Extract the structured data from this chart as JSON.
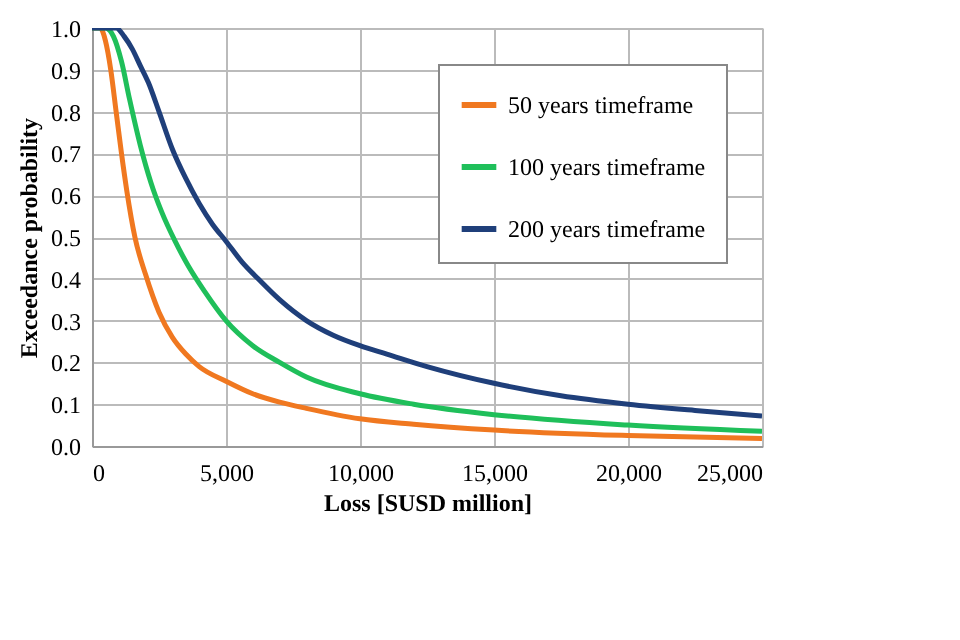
{
  "chart_data": {
    "type": "line",
    "xlabel": "Loss [SUSD million]",
    "ylabel": "Exceedance probability",
    "xlim": [
      0,
      25000
    ],
    "xticks": [
      {
        "value": 0,
        "label": "0"
      },
      {
        "value": 5000,
        "label": "5,000"
      },
      {
        "value": 10000,
        "label": "10,000"
      },
      {
        "value": 15000,
        "label": "15,000"
      },
      {
        "value": 20000,
        "label": "20,000"
      },
      {
        "value": 25000,
        "label": "25,000"
      }
    ],
    "ylim": [
      0,
      1
    ],
    "yticks": [
      {
        "value": 0,
        "label": "0.0"
      },
      {
        "value": 0.1,
        "label": "0.1"
      },
      {
        "value": 0.2,
        "label": "0.2"
      },
      {
        "value": 0.3,
        "label": "0.3"
      },
      {
        "value": 0.4,
        "label": "0.4"
      },
      {
        "value": 0.5,
        "label": "0.5"
      },
      {
        "value": 0.6,
        "label": "0.6"
      },
      {
        "value": 0.7,
        "label": "0.7"
      },
      {
        "value": 0.8,
        "label": "0.8"
      },
      {
        "value": 0.9,
        "label": "0.9"
      },
      {
        "value": 1,
        "label": "1.0"
      }
    ],
    "grid": true,
    "legend": "top right",
    "marker": "none",
    "line_style": "solid",
    "series": [
      {
        "name": "50 years timeframe",
        "color": "#f07820",
        "x": [
          0,
          300,
          500,
          700,
          900,
          1100,
          1300,
          1600,
          2000,
          2500,
          3000,
          3500,
          4000,
          5000,
          6000,
          7000,
          8000,
          10000,
          12000,
          15000,
          20000,
          25000
        ],
        "values": [
          1,
          1,
          0.97,
          0.9,
          0.8,
          0.7,
          0.61,
          0.5,
          0.41,
          0.32,
          0.26,
          0.22,
          0.19,
          0.155,
          0.125,
          0.105,
          0.09,
          0.065,
          0.052,
          0.038,
          0.025,
          0.018
        ]
      },
      {
        "name": "100 years timeframe",
        "color": "#1fbf5a",
        "x": [
          0,
          500,
          800,
          1100,
          1400,
          1800,
          2200,
          2600,
          3100,
          3600,
          4200,
          5000,
          6000,
          7000,
          8000,
          10000,
          12000,
          15000,
          20000,
          25000
        ],
        "values": [
          1,
          1,
          0.98,
          0.92,
          0.83,
          0.72,
          0.63,
          0.56,
          0.49,
          0.43,
          0.37,
          0.3,
          0.24,
          0.2,
          0.165,
          0.125,
          0.1,
          0.075,
          0.05,
          0.035
        ]
      },
      {
        "name": "200 years timeframe",
        "color": "#1f3f7a",
        "x": [
          0,
          900,
          1200,
          1500,
          1800,
          2100,
          2500,
          3000,
          3500,
          4000,
          4500,
          5000,
          5600,
          6200,
          7000,
          8000,
          9000,
          10000,
          11000,
          12500,
          15000,
          17500,
          20000,
          22500,
          25000
        ],
        "values": [
          1,
          1,
          0.98,
          0.95,
          0.91,
          0.87,
          0.8,
          0.71,
          0.64,
          0.58,
          0.53,
          0.49,
          0.44,
          0.4,
          0.35,
          0.3,
          0.265,
          0.24,
          0.22,
          0.19,
          0.15,
          0.12,
          0.1,
          0.085,
          0.072
        ]
      }
    ]
  }
}
